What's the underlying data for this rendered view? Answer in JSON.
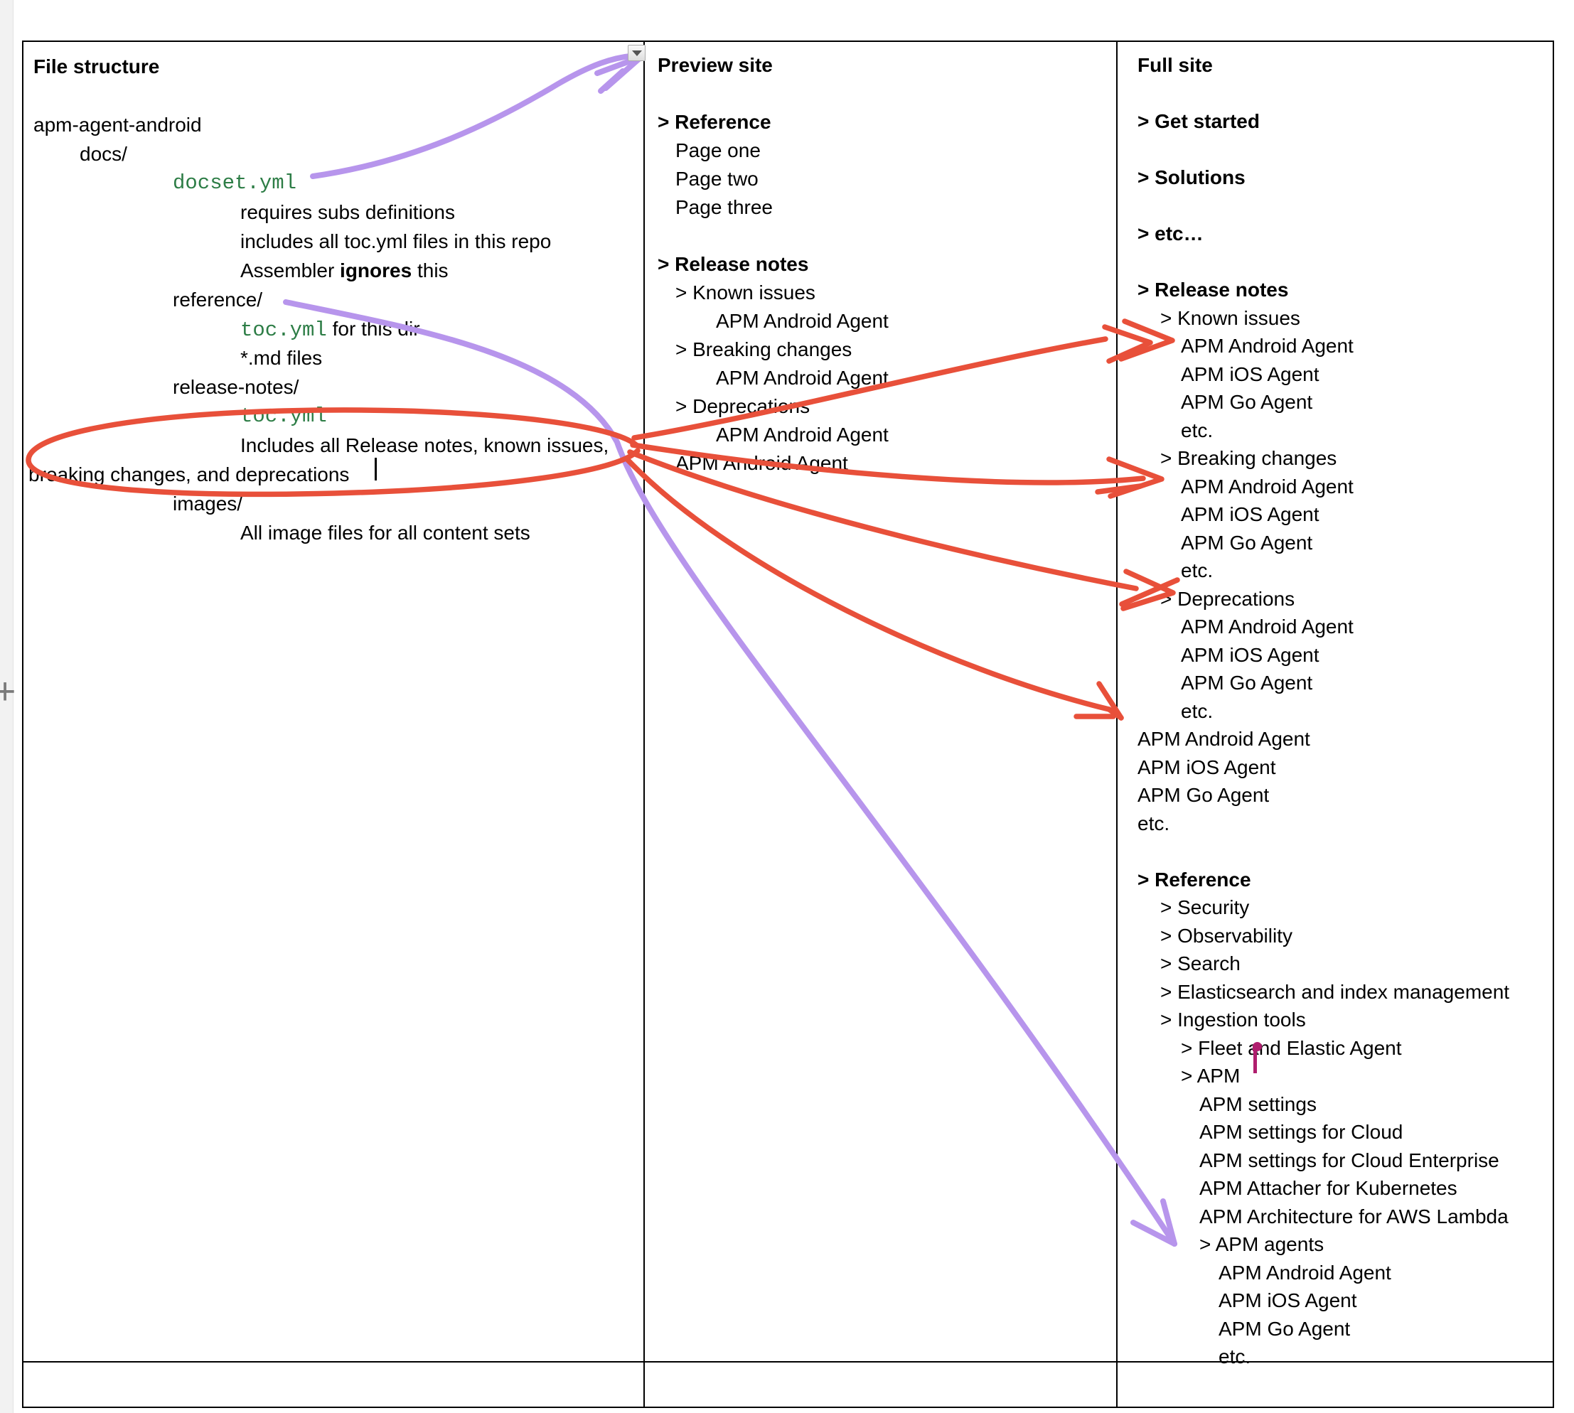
{
  "page": {
    "margin_add_label": "+"
  },
  "colors": {
    "red": "#e8503a",
    "purple": "#b795ec",
    "green": "#2d7d46",
    "magenta": "#b01e6e",
    "ink": "#000000"
  },
  "icons": {
    "table_dropdown": "triangle-down",
    "collab_cursor": "magenta-text-cursor",
    "text_cursor": "black-text-caret"
  },
  "table": {
    "columns": [
      {
        "title": "File structure",
        "lines": [
          {
            "t": "File structure",
            "b": 1
          },
          {
            "t": ""
          },
          {
            "t": "apm-agent-android",
            "i": 0
          },
          {
            "t": "docs/",
            "i": 1
          },
          {
            "t": "docset.yml",
            "i": 2,
            "m": 1
          },
          {
            "t": "requires subs definitions",
            "i": 3
          },
          {
            "t": "includes all toc.yml files in this repo",
            "i": 3
          },
          {
            "s": [
              {
                "t": "Assembler "
              },
              {
                "t": "ignores",
                "b": 1
              },
              {
                "t": " this"
              }
            ],
            "i": 3
          },
          {
            "t": "reference/",
            "i": 2
          },
          {
            "s": [
              {
                "t": "toc.yml",
                "m": 1
              },
              {
                "t": " for this dir"
              }
            ],
            "i": 3
          },
          {
            "t": "*.md files",
            "i": 3
          },
          {
            "t": "release-notes/",
            "i": 2
          },
          {
            "t": "toc.yml",
            "i": 3,
            "m": 1
          },
          {
            "t": "Includes all Release notes, known issues,",
            "i": 3
          },
          {
            "t": "breaking changes, and deprecations",
            "i": "w"
          },
          {
            "t": "images/",
            "i": 2
          },
          {
            "t": "All image files for all content sets",
            "i": 3
          }
        ]
      },
      {
        "title": "Preview site",
        "lines": [
          {
            "t": "Preview site",
            "b": 1
          },
          {
            "t": ""
          },
          {
            "t": "> Reference",
            "b": 1
          },
          {
            "t": "Page one",
            "i": 1
          },
          {
            "t": "Page two",
            "i": 1
          },
          {
            "t": "Page three",
            "i": 1
          },
          {
            "t": ""
          },
          {
            "t": "> Release notes",
            "b": 1
          },
          {
            "t": "> Known issues",
            "i": 1
          },
          {
            "t": "APM Android Agent",
            "i": 2
          },
          {
            "t": "> Breaking changes",
            "i": 1
          },
          {
            "t": "APM Android Agent",
            "i": 2
          },
          {
            "t": "> Deprecations",
            "i": 1
          },
          {
            "t": "APM Android Agent",
            "i": 2
          },
          {
            "t": "APM Android Agent",
            "i": 1
          }
        ]
      },
      {
        "title": "Full site",
        "lines": [
          {
            "t": "Full site",
            "b": 1
          },
          {
            "t": ""
          },
          {
            "t": "> Get started",
            "b": 1
          },
          {
            "t": ""
          },
          {
            "t": "> Solutions",
            "b": 1
          },
          {
            "t": ""
          },
          {
            "t": "> etc…",
            "b": 1
          },
          {
            "t": ""
          },
          {
            "t": "> Release notes",
            "b": 1
          },
          {
            "t": "> Known issues",
            "i": 1
          },
          {
            "t": "APM Android Agent",
            "i": 2
          },
          {
            "t": "APM iOS Agent",
            "i": 2
          },
          {
            "t": "APM Go Agent",
            "i": 2
          },
          {
            "t": "etc.",
            "i": 2
          },
          {
            "t": "> Breaking changes",
            "i": 1
          },
          {
            "t": "APM Android Agent",
            "i": 2
          },
          {
            "t": "APM iOS Agent",
            "i": 2
          },
          {
            "t": "APM Go Agent",
            "i": 2
          },
          {
            "t": "etc.",
            "i": 2
          },
          {
            "t": "> Deprecations",
            "i": 1
          },
          {
            "t": "APM Android Agent",
            "i": 2
          },
          {
            "t": "APM iOS Agent",
            "i": 2
          },
          {
            "t": "APM Go Agent",
            "i": 2
          },
          {
            "t": "etc.",
            "i": 2
          },
          {
            "t": "APM Android Agent",
            "i": 0
          },
          {
            "t": "APM iOS Agent",
            "i": 0
          },
          {
            "t": "APM Go Agent",
            "i": 0
          },
          {
            "t": "etc.",
            "i": 0
          },
          {
            "t": ""
          },
          {
            "t": "> Reference",
            "b": 1
          },
          {
            "t": "> Security",
            "i": 1
          },
          {
            "t": "> Observability",
            "i": 1
          },
          {
            "t": "> Search",
            "i": 1
          },
          {
            "t": "> Elasticsearch and index management",
            "i": 1
          },
          {
            "t": "> Ingestion tools",
            "i": 1
          },
          {
            "t": "> Fleet and Elastic Agent",
            "i": 2
          },
          {
            "t": "> APM",
            "i": 2
          },
          {
            "t": "APM settings",
            "i": 3
          },
          {
            "t": "APM settings for Cloud",
            "i": 3
          },
          {
            "t": "APM settings for Cloud Enterprise",
            "i": 3
          },
          {
            "t": "APM Attacher for Kubernetes",
            "i": 3
          },
          {
            "t": "APM Architecture for AWS Lambda",
            "i": 3
          },
          {
            "t": "> APM agents",
            "i": 3
          },
          {
            "t": "APM Android Agent",
            "i": 4
          },
          {
            "t": "APM iOS Agent",
            "i": 4
          },
          {
            "t": "APM Go Agent",
            "i": 4
          },
          {
            "t": "etc.",
            "i": 4
          }
        ]
      }
    ]
  },
  "annotations": {
    "purple_arrows": [
      {
        "name": "docset-yml-to-preview-site"
      },
      {
        "name": "reference-dir-to-apm-android-agent-under-apm-agents"
      }
    ],
    "red_marks": [
      {
        "name": "ellipse-around-release-notes-description"
      },
      {
        "name": "to-known-issues-apm-android-agent"
      },
      {
        "name": "to-breaking-changes-apm-android-agent"
      },
      {
        "name": "to-deprecations-heading"
      },
      {
        "name": "to-standalone-apm-android-agent"
      }
    ]
  }
}
